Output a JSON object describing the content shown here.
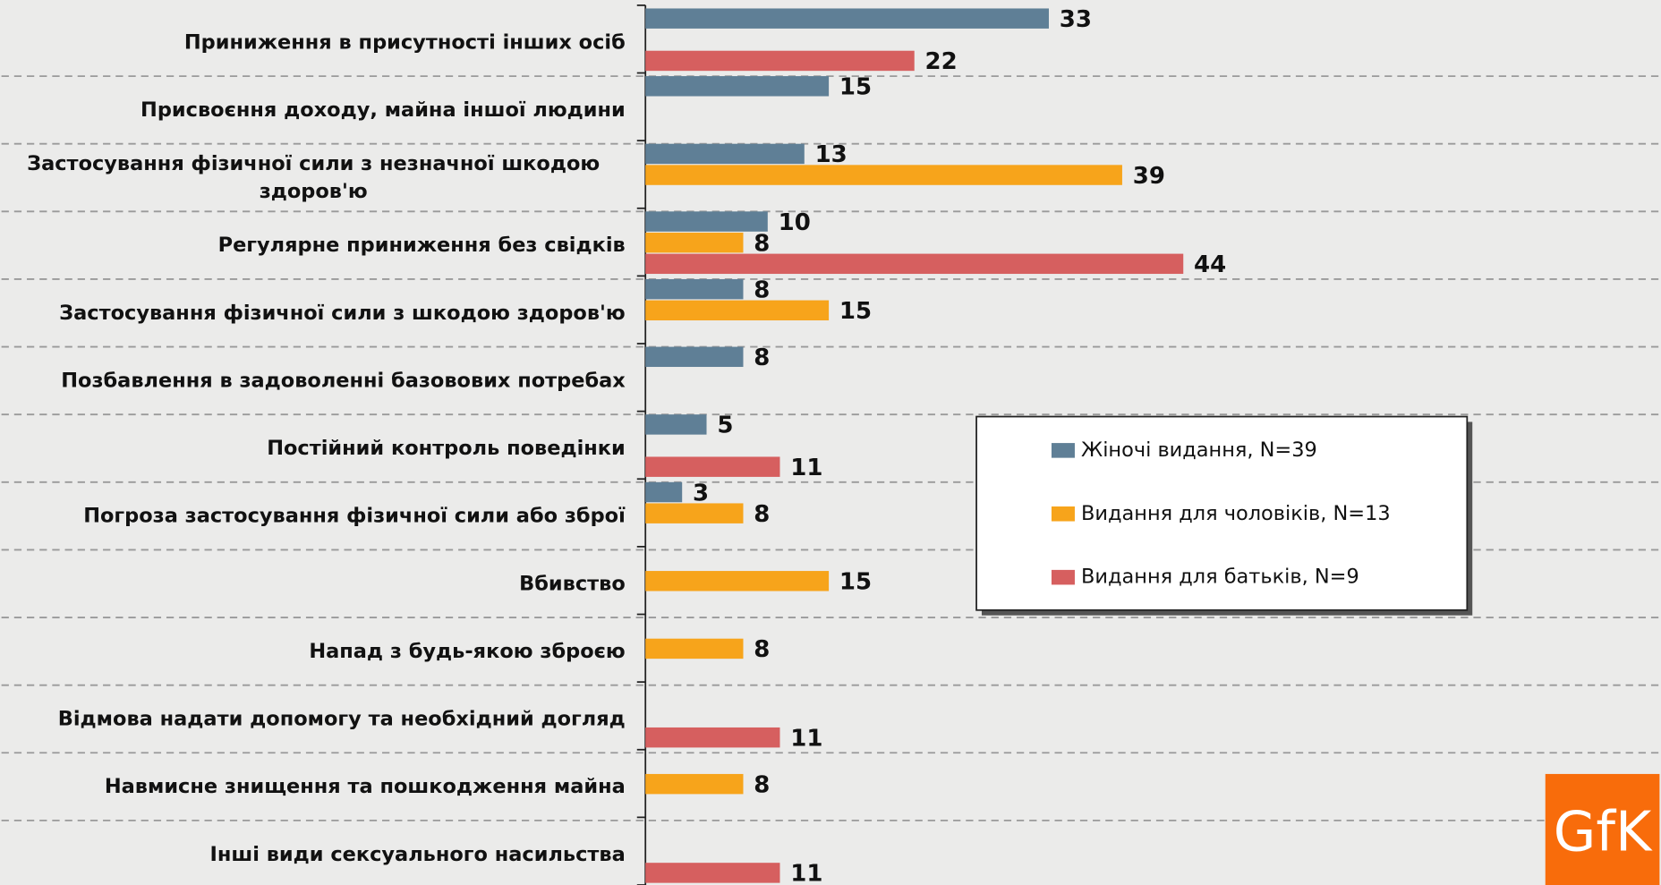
{
  "chart_data": {
    "type": "hbar",
    "categories": [
      "Приниження в присутності інших осіб",
      "Присвоєння доходу, майна іншої людини",
      "Застосування фізичної сили з незначної шкодою здоров'ю",
      "Регулярне приниження без свідків",
      "Застосування фізичної сили з шкодою здоров'ю",
      "Позбавлення в задоволенні базововиx потребах",
      "Постійний контроль поведінки",
      "Погроза застосування фізичної сили або зброї",
      "Вбивство",
      "Напад з будь-якою зброєю",
      "Відмова надати допомогу та необхідний догляд",
      "Навмисне знищення та пошкодження майна",
      "Інші види сексуального насильства"
    ],
    "series": [
      {
        "name": "Жіночі видання, N=39",
        "color": "#5f7f96",
        "values": [
          33,
          15,
          13,
          10,
          8,
          8,
          5,
          3,
          null,
          null,
          null,
          null,
          null
        ]
      },
      {
        "name": "Видання для чоловіків, N=13",
        "color": "#f7a41b",
        "values": [
          null,
          null,
          39,
          8,
          15,
          null,
          null,
          8,
          15,
          8,
          null,
          8,
          null
        ]
      },
      {
        "name": "Видання для батьків, N=9",
        "color": "#d65f5f",
        "values": [
          22,
          null,
          null,
          44,
          null,
          null,
          11,
          null,
          null,
          null,
          11,
          null,
          11
        ]
      }
    ],
    "xlim": [
      0,
      50
    ],
    "grid": true,
    "legend": "right",
    "logo": "GfK"
  }
}
